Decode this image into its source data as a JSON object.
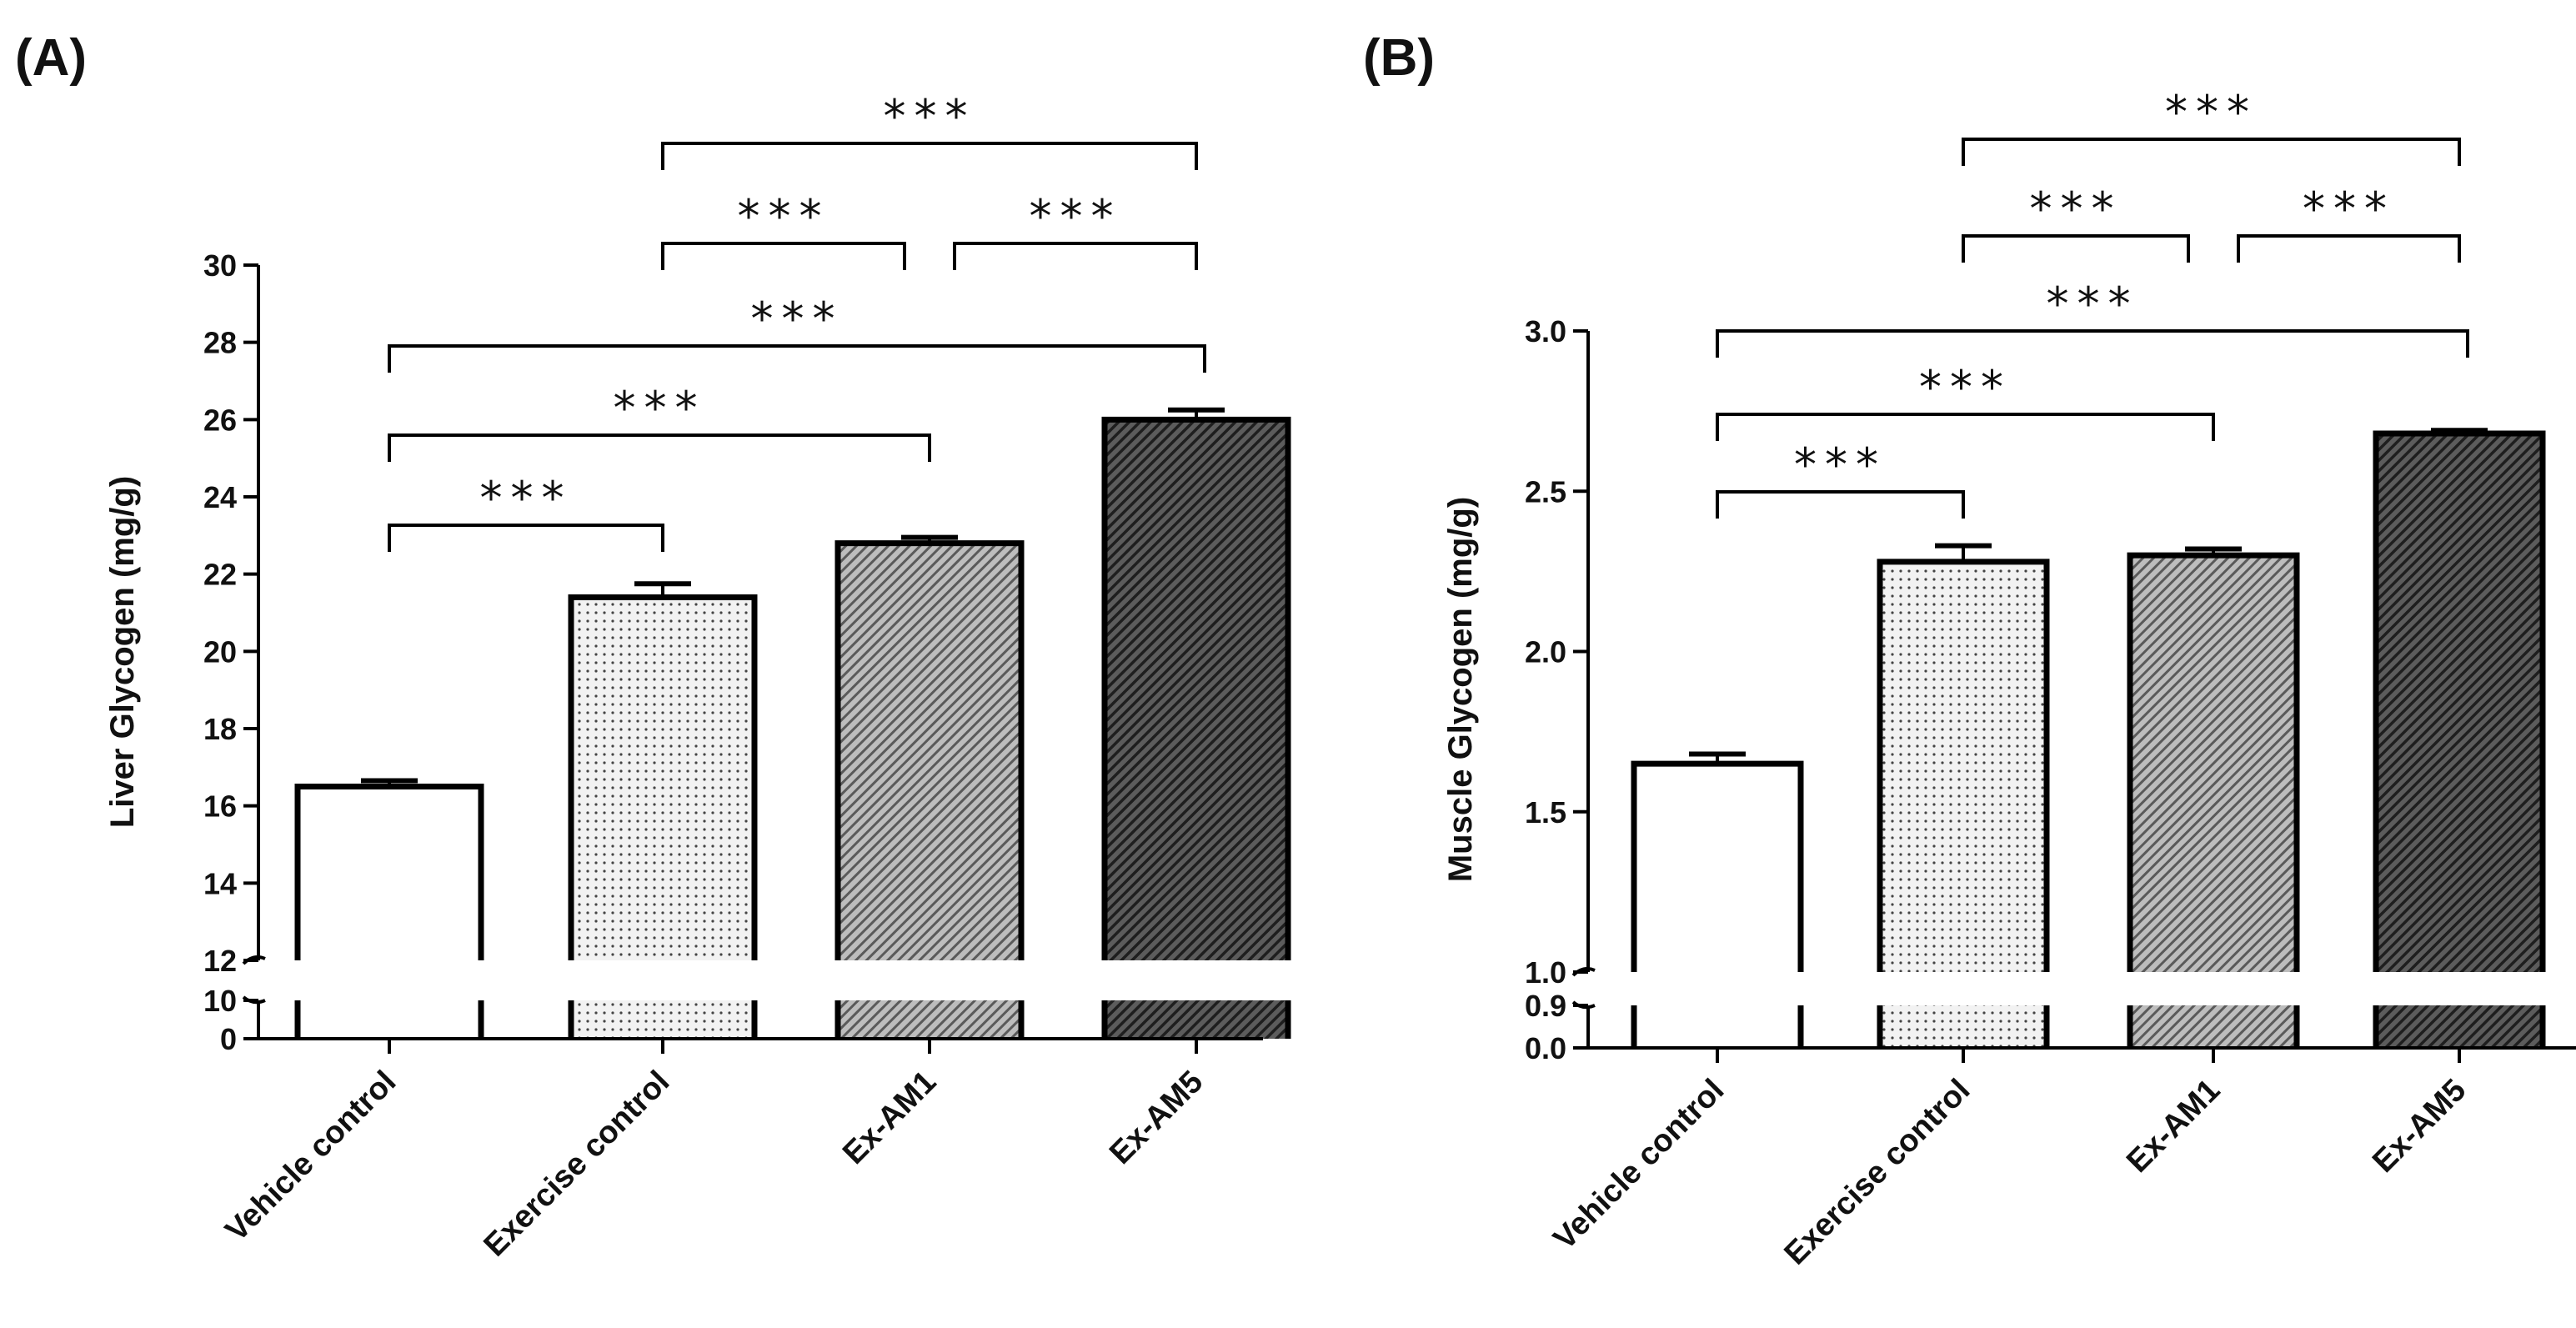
{
  "chart_data": [
    {
      "panel": "(A)",
      "type": "bar",
      "categories": [
        "Vehicle control",
        "Exercise control",
        "Ex-AM1",
        "Ex-AM5"
      ],
      "values": [
        16.5,
        21.4,
        22.8,
        26.0
      ],
      "errors": [
        0.15,
        0.35,
        0.15,
        0.25
      ],
      "patterns": [
        "none",
        "dots",
        "hatch-light",
        "hatch-dark"
      ],
      "ylabel": "Liver Glycogen (mg/g)",
      "xlabel": "",
      "ylim": [
        0,
        30
      ],
      "axis_break": [
        10,
        12
      ],
      "upper_ticks": [
        "12",
        "14",
        "16",
        "18",
        "20",
        "22",
        "24",
        "26",
        "28",
        "30"
      ],
      "lower_ticks": [
        "0",
        "10"
      ],
      "significance": [
        {
          "from": 1,
          "to": 3,
          "label": "***"
        },
        {
          "from": 1,
          "to": 2,
          "label": "***"
        },
        {
          "from": 2,
          "to": 3,
          "label": "***"
        },
        {
          "from": 0,
          "to": 3,
          "label": "***"
        },
        {
          "from": 0,
          "to": 2,
          "label": "***"
        },
        {
          "from": 0,
          "to": 1,
          "label": "***"
        }
      ]
    },
    {
      "panel": "(B)",
      "type": "bar",
      "categories": [
        "Vehicle control",
        "Exercise control",
        "Ex-AM1",
        "Ex-AM5"
      ],
      "values": [
        1.65,
        2.28,
        2.3,
        2.68
      ],
      "errors": [
        0.03,
        0.05,
        0.02,
        0.01
      ],
      "patterns": [
        "none",
        "dots",
        "hatch-light",
        "hatch-dark"
      ],
      "ylabel": "Muscle Glycogen (mg/g)",
      "xlabel": "",
      "ylim": [
        0.0,
        3.0
      ],
      "axis_break": [
        0.9,
        1.0
      ],
      "upper_ticks": [
        "1.0",
        "1.5",
        "2.0",
        "2.5",
        "3.0"
      ],
      "lower_ticks": [
        "0.0",
        "0.9"
      ],
      "significance": [
        {
          "from": 1,
          "to": 3,
          "label": "***"
        },
        {
          "from": 1,
          "to": 2,
          "label": "***"
        },
        {
          "from": 2,
          "to": 3,
          "label": "***"
        },
        {
          "from": 0,
          "to": 3,
          "label": "***"
        },
        {
          "from": 0,
          "to": 2,
          "label": "***"
        },
        {
          "from": 0,
          "to": 1,
          "label": "***"
        }
      ]
    }
  ]
}
